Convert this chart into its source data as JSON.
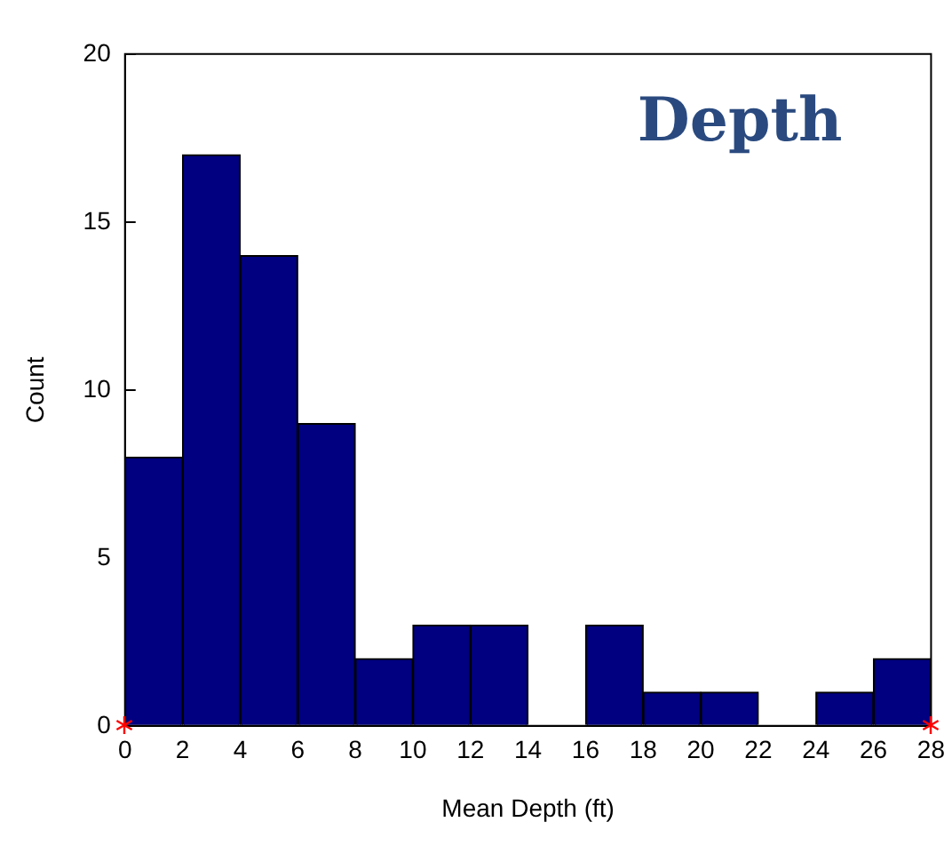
{
  "chart_data": {
    "type": "histogram",
    "title": "Depth",
    "xlabel": "Mean Depth (ft)",
    "ylabel": "Count",
    "bins": [
      0,
      2,
      4,
      6,
      8,
      10,
      12,
      14,
      16,
      18,
      20,
      22,
      24,
      26,
      28
    ],
    "values": [
      8,
      17,
      14,
      9,
      2,
      3,
      3,
      0,
      3,
      1,
      1,
      0,
      1,
      2
    ],
    "color": "#000080",
    "xlim": [
      0,
      28
    ],
    "xticks": [
      0,
      2,
      4,
      6,
      8,
      10,
      12,
      14,
      16,
      18,
      20,
      22,
      24,
      26,
      28
    ],
    "ylim": [
      0,
      20
    ],
    "yticks": [
      0,
      5,
      10,
      15,
      20
    ],
    "grid": false,
    "legend": false
  }
}
